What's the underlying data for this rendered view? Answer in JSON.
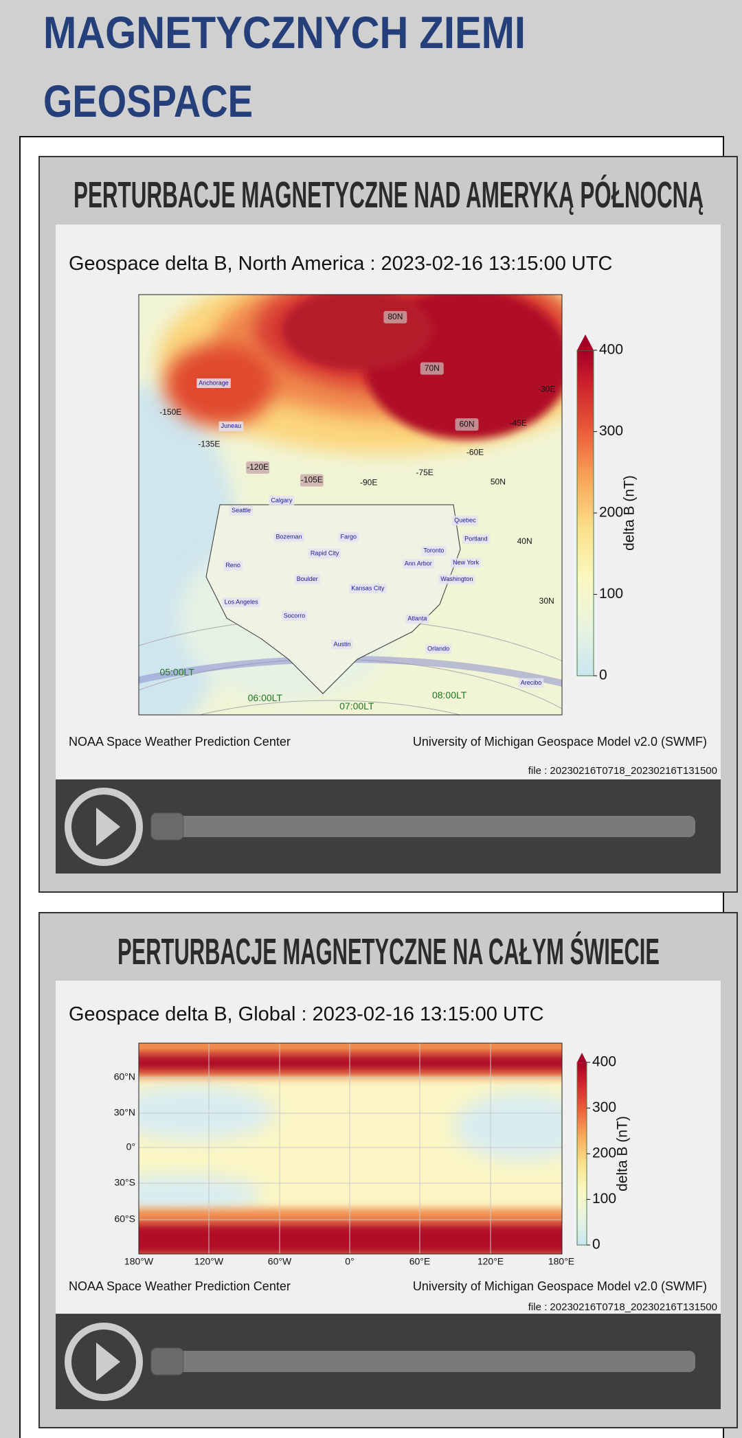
{
  "header": {
    "line1": "MAGNETYCZNYCH ZIEMI",
    "line2": "GEOSPACE"
  },
  "panels": [
    {
      "heading": "PERTURBACJE MAGNETYCZNE NAD AMERYKĄ PÓŁNOCNĄ",
      "plot_title": "Geospace delta B, North America : 2023-02-16  13:15:00 UTC",
      "city_labels": [
        "Anchorage",
        "Juneau",
        "Calgary",
        "Seattle",
        "Bozeman",
        "Fargo",
        "Rapid City",
        "Reno",
        "Boulder",
        "Kansas City",
        "Toronto",
        "Ann Arbor",
        "New York",
        "Washington",
        "Quebec",
        "Portland",
        "Los Angeles",
        "Socorro",
        "Atlanta",
        "Austin",
        "Orlando",
        "Arecibo"
      ],
      "grid_labels": [
        "80N",
        "70N",
        "60N",
        "50N",
        "40N",
        "30N",
        "-30E",
        "-45E",
        "-60E",
        "-75E",
        "-90E",
        "-105E",
        "-120E",
        "-135E",
        "-150E"
      ],
      "time_labels": [
        "05:00LT",
        "06:00LT",
        "07:00LT",
        "08:00LT"
      ],
      "colorbar": {
        "ticks": [
          0,
          100,
          200,
          300,
          400
        ],
        "label": "delta B (nT)"
      },
      "credit_left": "NOAA Space Weather Prediction Center",
      "credit_right": "University of Michigan Geospace Model v2.0 (SWMF)",
      "file": "file : 20230216T0718_20230216T131500"
    },
    {
      "heading": "PERTURBACJE MAGNETYCZNE NA CAŁYM ŚWIECIE",
      "plot_title": "Geospace delta B, Global : 2023-02-16  13:15:00 UTC",
      "lat_labels": [
        "60°N",
        "30°N",
        "0°",
        "30°S",
        "60°S"
      ],
      "lon_labels": [
        "180°W",
        "120°W",
        "60°W",
        "0°",
        "60°E",
        "120°E",
        "180°E"
      ],
      "colorbar": {
        "ticks": [
          0,
          100,
          200,
          300,
          400
        ],
        "label": "delta B (nT)"
      },
      "credit_left": "NOAA Space Weather Prediction Center",
      "credit_right": "University of Michigan Geospace Model v2.0 (SWMF)",
      "file": "file : 20230216T0718_20230216T131500"
    }
  ]
}
